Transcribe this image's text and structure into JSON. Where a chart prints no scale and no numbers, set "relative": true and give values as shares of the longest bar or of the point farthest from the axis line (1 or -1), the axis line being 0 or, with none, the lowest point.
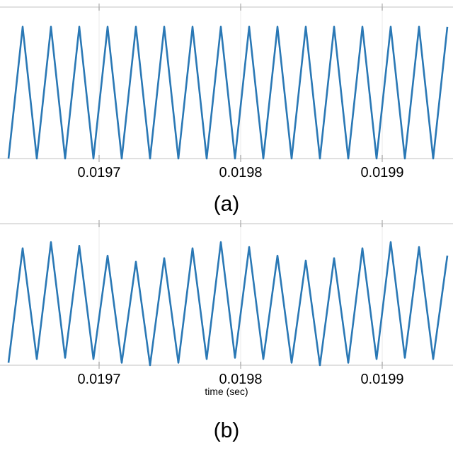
{
  "chart_data": [
    {
      "type": "line",
      "relative": true,
      "color": "#2a78b5",
      "grid": "x",
      "xlim": [
        0.01963,
        0.01995
      ],
      "xticks": [
        0.0197,
        0.0198,
        0.0199
      ],
      "annotations": [
        "(a)"
      ],
      "x": [
        0.019636,
        0.019646,
        0.019656,
        0.019666,
        0.019676,
        0.019686,
        0.019696,
        0.019706,
        0.019716,
        0.019726,
        0.019736,
        0.019746,
        0.019756,
        0.019766,
        0.019776,
        0.019786,
        0.019796,
        0.019806,
        0.019816,
        0.019826,
        0.019836,
        0.019846,
        0.019856,
        0.019866,
        0.019876,
        0.019886,
        0.019896,
        0.019906,
        0.019916,
        0.019926,
        0.019936,
        0.019946
      ],
      "values": [
        0,
        1,
        0,
        1,
        0,
        1,
        0,
        1,
        0,
        1,
        0,
        1,
        0,
        1,
        0,
        1,
        0,
        1,
        0,
        1,
        0,
        1,
        0,
        1,
        0,
        1,
        0,
        1,
        0,
        1,
        0,
        1
      ]
    },
    {
      "type": "line",
      "relative": true,
      "color": "#2a78b5",
      "grid": "x",
      "xlim": [
        0.01963,
        0.01995
      ],
      "xticks": [
        0.0197,
        0.0198,
        0.0199
      ],
      "xlabel": "time (sec)",
      "annotations": [
        "(b)"
      ],
      "x": [
        0.019636,
        0.019646,
        0.019656,
        0.019666,
        0.019676,
        0.019686,
        0.019696,
        0.019706,
        0.019716,
        0.019726,
        0.019736,
        0.019746,
        0.019756,
        0.019766,
        0.019776,
        0.019786,
        0.019796,
        0.019806,
        0.019816,
        0.019826,
        0.019836,
        0.019846,
        0.019856,
        0.019866,
        0.019876,
        0.019886,
        0.019896,
        0.019906,
        0.019916,
        0.019926,
        0.019936,
        0.019946
      ],
      "values": [
        0.02,
        0.95,
        0.05,
        1,
        0.06,
        0.97,
        0.05,
        0.89,
        0.02,
        0.84,
        0,
        0.87,
        0.02,
        0.95,
        0.05,
        1,
        0.06,
        0.96,
        0.05,
        0.89,
        0.02,
        0.85,
        0,
        0.87,
        0.02,
        0.95,
        0.05,
        1,
        0.06,
        0.96,
        0.05,
        0.89
      ]
    }
  ]
}
